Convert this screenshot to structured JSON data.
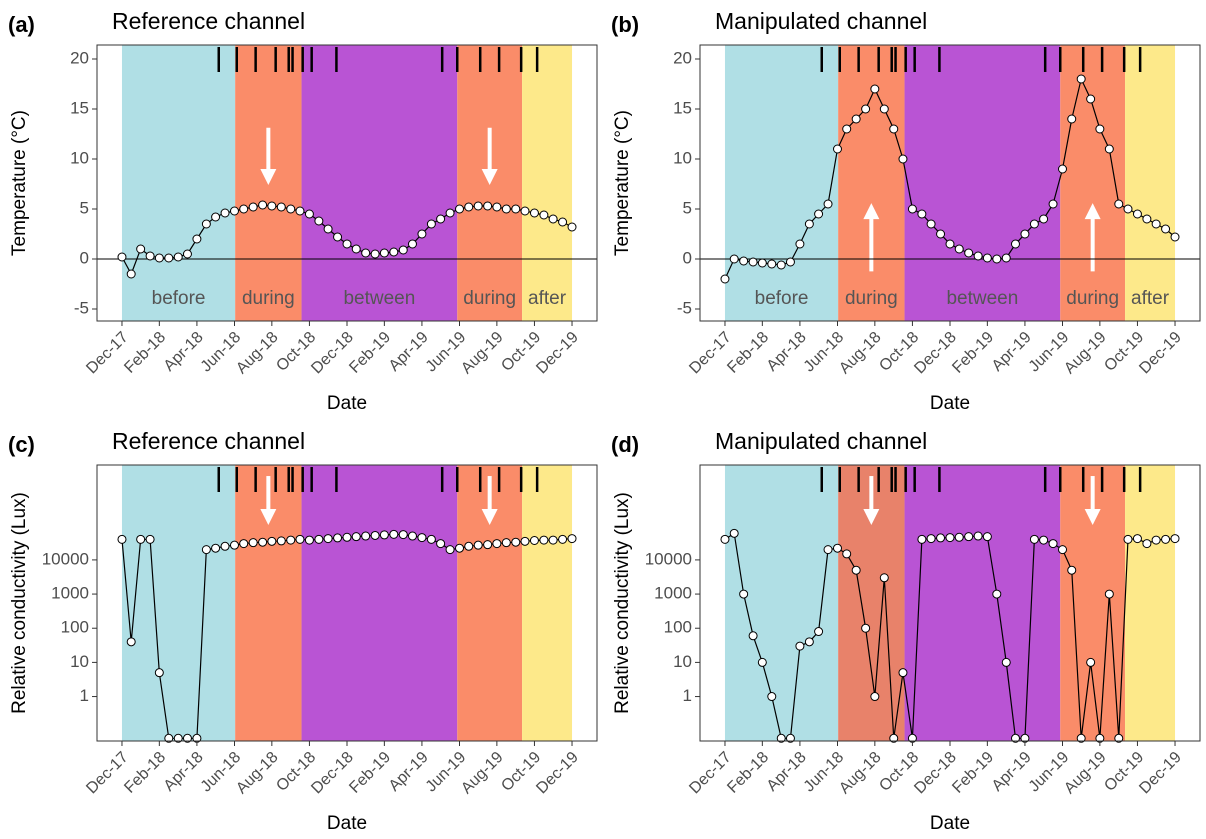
{
  "chart_data": [
    {
      "type": "line",
      "panel": "(a)",
      "title": "Reference channel",
      "xlabel": "Date",
      "ylabel": "Temperature (°C)",
      "log": false,
      "zero_line": true,
      "xlim": [
        2017.806,
        2020.028
      ],
      "ylim": [
        -6.2,
        21.4
      ],
      "yticks": [
        -5,
        0,
        5,
        10,
        15,
        20
      ],
      "xticks": [
        {
          "value": 2017.917,
          "label": "Dec-17"
        },
        {
          "value": 2018.083,
          "label": "Feb-18"
        },
        {
          "value": 2018.25,
          "label": "Apr-18"
        },
        {
          "value": 2018.417,
          "label": "Jun-18"
        },
        {
          "value": 2018.583,
          "label": "Aug-18"
        },
        {
          "value": 2018.75,
          "label": "Oct-18"
        },
        {
          "value": 2018.917,
          "label": "Dec-18"
        },
        {
          "value": 2019.083,
          "label": "Feb-19"
        },
        {
          "value": 2019.25,
          "label": "Apr-19"
        },
        {
          "value": 2019.417,
          "label": "Jun-19"
        },
        {
          "value": 2019.583,
          "label": "Aug-19"
        },
        {
          "value": 2019.75,
          "label": "Oct-19"
        },
        {
          "value": 2019.917,
          "label": "Dec-19"
        }
      ],
      "phases": [
        {
          "label": "before",
          "start": 2017.917,
          "end": 2018.42,
          "color": "#b0dfe5"
        },
        {
          "label": "during",
          "start": 2018.42,
          "end": 2018.715,
          "color": "#fa8c69",
          "arrow": "down"
        },
        {
          "label": "between",
          "start": 2018.715,
          "end": 2019.407,
          "color": "#b954d4"
        },
        {
          "label": "during",
          "start": 2019.407,
          "end": 2019.695,
          "color": "#fa8c69",
          "arrow": "down"
        },
        {
          "label": "after",
          "start": 2019.695,
          "end": 2019.917,
          "color": "#fde98a"
        }
      ],
      "events": [
        2018.347,
        2018.427,
        2018.511,
        2018.6,
        2018.658,
        2018.675,
        2018.72,
        2018.76,
        2018.87,
        2019.34,
        2019.407,
        2019.509,
        2019.593,
        2019.691,
        2019.762
      ],
      "x": [
        2017.917,
        2017.958,
        2018.0,
        2018.042,
        2018.083,
        2018.125,
        2018.167,
        2018.208,
        2018.25,
        2018.292,
        2018.333,
        2018.375,
        2018.417,
        2018.458,
        2018.5,
        2018.542,
        2018.583,
        2018.625,
        2018.667,
        2018.708,
        2018.75,
        2018.792,
        2018.833,
        2018.875,
        2018.917,
        2018.958,
        2019.0,
        2019.042,
        2019.083,
        2019.125,
        2019.167,
        2019.208,
        2019.25,
        2019.292,
        2019.333,
        2019.375,
        2019.417,
        2019.458,
        2019.5,
        2019.542,
        2019.583,
        2019.625,
        2019.667,
        2019.708,
        2019.75,
        2019.792,
        2019.833,
        2019.875,
        2019.917
      ],
      "values": [
        0.2,
        -1.5,
        1.0,
        0.3,
        0.1,
        0.1,
        0.2,
        0.5,
        2.0,
        3.5,
        4.2,
        4.6,
        4.8,
        5.0,
        5.2,
        5.4,
        5.3,
        5.2,
        5.0,
        4.8,
        4.5,
        3.8,
        3.0,
        2.2,
        1.5,
        1.0,
        0.6,
        0.5,
        0.6,
        0.7,
        0.9,
        1.5,
        2.5,
        3.5,
        4.0,
        4.6,
        5.0,
        5.2,
        5.3,
        5.3,
        5.2,
        5.0,
        5.0,
        4.8,
        4.6,
        4.4,
        4.0,
        3.7,
        3.2
      ]
    },
    {
      "type": "line",
      "panel": "(b)",
      "title": "Manipulated channel",
      "xlabel": "Date",
      "ylabel": "Temperature (°C)",
      "log": false,
      "zero_line": true,
      "xlim": [
        2017.806,
        2020.028
      ],
      "ylim": [
        -6.2,
        21.4
      ],
      "yticks": [
        -5,
        0,
        5,
        10,
        15,
        20
      ],
      "xticks": [
        {
          "value": 2017.917,
          "label": "Dec-17"
        },
        {
          "value": 2018.083,
          "label": "Feb-18"
        },
        {
          "value": 2018.25,
          "label": "Apr-18"
        },
        {
          "value": 2018.417,
          "label": "Jun-18"
        },
        {
          "value": 2018.583,
          "label": "Aug-18"
        },
        {
          "value": 2018.75,
          "label": "Oct-18"
        },
        {
          "value": 2018.917,
          "label": "Dec-18"
        },
        {
          "value": 2019.083,
          "label": "Feb-19"
        },
        {
          "value": 2019.25,
          "label": "Apr-19"
        },
        {
          "value": 2019.417,
          "label": "Jun-19"
        },
        {
          "value": 2019.583,
          "label": "Aug-19"
        },
        {
          "value": 2019.75,
          "label": "Oct-19"
        },
        {
          "value": 2019.917,
          "label": "Dec-19"
        }
      ],
      "phases": [
        {
          "label": "before",
          "start": 2017.917,
          "end": 2018.42,
          "color": "#b0dfe5"
        },
        {
          "label": "during",
          "start": 2018.42,
          "end": 2018.715,
          "color": "#fa8c69",
          "arrow": "up"
        },
        {
          "label": "between",
          "start": 2018.715,
          "end": 2019.407,
          "color": "#b954d4"
        },
        {
          "label": "during",
          "start": 2019.407,
          "end": 2019.695,
          "color": "#fa8c69",
          "arrow": "up"
        },
        {
          "label": "after",
          "start": 2019.695,
          "end": 2019.917,
          "color": "#fde98a"
        }
      ],
      "events": [
        2018.347,
        2018.427,
        2018.511,
        2018.6,
        2018.658,
        2018.675,
        2018.72,
        2018.76,
        2018.87,
        2019.34,
        2019.407,
        2019.509,
        2019.593,
        2019.691,
        2019.762
      ],
      "x": [
        2017.917,
        2017.958,
        2018.0,
        2018.042,
        2018.083,
        2018.125,
        2018.167,
        2018.208,
        2018.25,
        2018.292,
        2018.333,
        2018.375,
        2018.417,
        2018.458,
        2018.5,
        2018.542,
        2018.583,
        2018.625,
        2018.667,
        2018.708,
        2018.75,
        2018.792,
        2018.833,
        2018.875,
        2018.917,
        2018.958,
        2019.0,
        2019.042,
        2019.083,
        2019.125,
        2019.167,
        2019.208,
        2019.25,
        2019.292,
        2019.333,
        2019.375,
        2019.417,
        2019.458,
        2019.5,
        2019.542,
        2019.583,
        2019.625,
        2019.667,
        2019.708,
        2019.75,
        2019.792,
        2019.833,
        2019.875,
        2019.917
      ],
      "values": [
        -2,
        0,
        -0.2,
        -0.3,
        -0.4,
        -0.5,
        -0.6,
        -0.3,
        1.5,
        3.5,
        4.5,
        5.5,
        11,
        13,
        14,
        15,
        17,
        15,
        13,
        10,
        5,
        4.5,
        3.5,
        2.5,
        1.5,
        1.0,
        0.6,
        0.3,
        0.1,
        0.0,
        0.1,
        1.5,
        2.5,
        3.5,
        4.0,
        5.5,
        9,
        14,
        18,
        16,
        13,
        11,
        5.5,
        5.0,
        4.5,
        4.0,
        3.5,
        3.0,
        2.2
      ]
    },
    {
      "type": "line",
      "panel": "(c)",
      "title": "Reference channel",
      "xlabel": "Date",
      "ylabel": "Relative conductivity (Lux)",
      "log": true,
      "zero_line": false,
      "xlim": [
        2017.806,
        2020.028
      ],
      "ylim": [
        0.05,
        6000000
      ],
      "yticks": [
        1,
        10,
        100,
        1000,
        10000
      ],
      "xticks": [
        {
          "value": 2017.917,
          "label": "Dec-17"
        },
        {
          "value": 2018.083,
          "label": "Feb-18"
        },
        {
          "value": 2018.25,
          "label": "Apr-18"
        },
        {
          "value": 2018.417,
          "label": "Jun-18"
        },
        {
          "value": 2018.583,
          "label": "Aug-18"
        },
        {
          "value": 2018.75,
          "label": "Oct-18"
        },
        {
          "value": 2018.917,
          "label": "Dec-18"
        },
        {
          "value": 2019.083,
          "label": "Feb-19"
        },
        {
          "value": 2019.25,
          "label": "Apr-19"
        },
        {
          "value": 2019.417,
          "label": "Jun-19"
        },
        {
          "value": 2019.583,
          "label": "Aug-19"
        },
        {
          "value": 2019.75,
          "label": "Oct-19"
        },
        {
          "value": 2019.917,
          "label": "Dec-19"
        }
      ],
      "phases": [
        {
          "start": 2017.917,
          "end": 2018.42,
          "color": "#b0dfe5"
        },
        {
          "start": 2018.42,
          "end": 2018.715,
          "color": "#fa8c69",
          "arrow": "down"
        },
        {
          "start": 2018.715,
          "end": 2019.407,
          "color": "#b954d4"
        },
        {
          "start": 2019.407,
          "end": 2019.695,
          "color": "#fa8c69",
          "arrow": "down"
        },
        {
          "start": 2019.695,
          "end": 2019.917,
          "color": "#fde98a"
        }
      ],
      "events": [
        2018.347,
        2018.427,
        2018.511,
        2018.6,
        2018.658,
        2018.675,
        2018.72,
        2018.76,
        2018.87,
        2019.34,
        2019.407,
        2019.509,
        2019.593,
        2019.691,
        2019.762
      ],
      "x": [
        2017.917,
        2017.958,
        2018.0,
        2018.042,
        2018.083,
        2018.125,
        2018.167,
        2018.208,
        2018.25,
        2018.292,
        2018.333,
        2018.375,
        2018.417,
        2018.458,
        2018.5,
        2018.542,
        2018.583,
        2018.625,
        2018.667,
        2018.708,
        2018.75,
        2018.792,
        2018.833,
        2018.875,
        2018.917,
        2018.958,
        2019.0,
        2019.042,
        2019.083,
        2019.125,
        2019.167,
        2019.208,
        2019.25,
        2019.292,
        2019.333,
        2019.375,
        2019.417,
        2019.458,
        2019.5,
        2019.542,
        2019.583,
        2019.625,
        2019.667,
        2019.708,
        2019.75,
        2019.792,
        2019.833,
        2019.875,
        2019.917
      ],
      "values": [
        40000,
        40,
        40000,
        40000,
        5,
        0.06,
        0.06,
        0.06,
        0.06,
        20000,
        22000,
        25000,
        27000,
        30000,
        32000,
        33000,
        35000,
        36000,
        38000,
        40000,
        38000,
        40000,
        42000,
        44000,
        46000,
        48000,
        50000,
        52000,
        54000,
        56000,
        55000,
        50000,
        45000,
        40000,
        30000,
        20000,
        22000,
        25000,
        27000,
        28000,
        30000,
        32000,
        33000,
        35000,
        37000,
        38000,
        38000,
        40000,
        42000
      ]
    },
    {
      "type": "line",
      "panel": "(d)",
      "title": "Manipulated channel",
      "xlabel": "Date",
      "ylabel": "Relative conductivity (Lux)",
      "log": true,
      "zero_line": false,
      "xlim": [
        2017.806,
        2020.028
      ],
      "ylim": [
        0.05,
        6000000
      ],
      "yticks": [
        1,
        10,
        100,
        1000,
        10000
      ],
      "xticks": [
        {
          "value": 2017.917,
          "label": "Dec-17"
        },
        {
          "value": 2018.083,
          "label": "Feb-18"
        },
        {
          "value": 2018.25,
          "label": "Apr-18"
        },
        {
          "value": 2018.417,
          "label": "Jun-18"
        },
        {
          "value": 2018.583,
          "label": "Aug-18"
        },
        {
          "value": 2018.75,
          "label": "Oct-18"
        },
        {
          "value": 2018.917,
          "label": "Dec-18"
        },
        {
          "value": 2019.083,
          "label": "Feb-19"
        },
        {
          "value": 2019.25,
          "label": "Apr-19"
        },
        {
          "value": 2019.417,
          "label": "Jun-19"
        },
        {
          "value": 2019.583,
          "label": "Aug-19"
        },
        {
          "value": 2019.75,
          "label": "Oct-19"
        },
        {
          "value": 2019.917,
          "label": "Dec-19"
        }
      ],
      "phases": [
        {
          "start": 2017.917,
          "end": 2018.42,
          "color": "#b0dfe5"
        },
        {
          "start": 2018.42,
          "end": 2018.715,
          "color": "#e8826a",
          "arrow": "down"
        },
        {
          "start": 2018.715,
          "end": 2019.407,
          "color": "#b954d4"
        },
        {
          "start": 2019.407,
          "end": 2019.695,
          "color": "#fa8c69",
          "arrow": "down"
        },
        {
          "start": 2019.695,
          "end": 2019.917,
          "color": "#fde98a"
        }
      ],
      "events": [
        2018.347,
        2018.427,
        2018.511,
        2018.6,
        2018.658,
        2018.675,
        2018.72,
        2018.76,
        2018.87,
        2019.34,
        2019.407,
        2019.509,
        2019.593,
        2019.691,
        2019.762
      ],
      "x": [
        2017.917,
        2017.958,
        2018.0,
        2018.042,
        2018.083,
        2018.125,
        2018.167,
        2018.208,
        2018.25,
        2018.292,
        2018.333,
        2018.375,
        2018.417,
        2018.458,
        2018.5,
        2018.542,
        2018.583,
        2018.625,
        2018.667,
        2018.708,
        2018.75,
        2018.792,
        2018.833,
        2018.875,
        2018.917,
        2018.958,
        2019.0,
        2019.042,
        2019.083,
        2019.125,
        2019.167,
        2019.208,
        2019.25,
        2019.292,
        2019.333,
        2019.375,
        2019.417,
        2019.458,
        2019.5,
        2019.542,
        2019.583,
        2019.625,
        2019.667,
        2019.708,
        2019.75,
        2019.792,
        2019.833,
        2019.875,
        2019.917
      ],
      "values": [
        40000,
        60000,
        1000,
        60,
        10,
        1,
        0.06,
        0.06,
        30,
        40,
        80,
        20000,
        22000,
        15000,
        5000,
        100,
        1,
        3000,
        0.06,
        5,
        0.06,
        40000,
        42000,
        44000,
        45000,
        46000,
        48000,
        50000,
        48000,
        1000,
        10,
        0.06,
        0.06,
        40000,
        38000,
        30000,
        20000,
        5000,
        0.06,
        10,
        0.06,
        1000,
        0.06,
        40000,
        42000,
        30000,
        38000,
        40000,
        42000
      ]
    }
  ]
}
